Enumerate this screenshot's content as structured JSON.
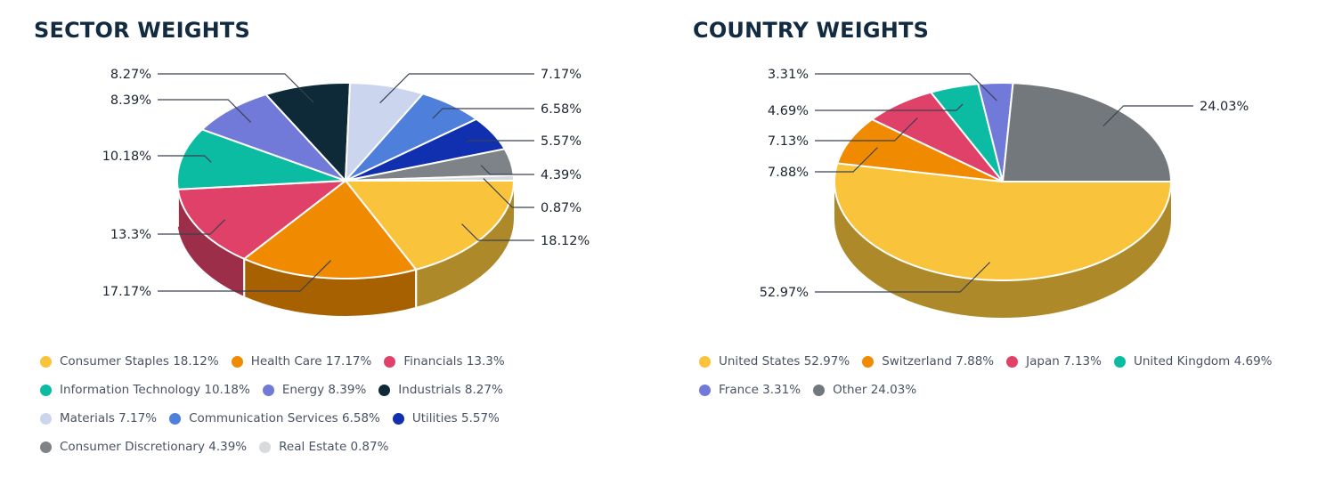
{
  "page_title": "Sector and country weights pie charts",
  "titles": {
    "sector": "SECTOR WEIGHTS",
    "country": "COUNTRY WEIGHTS"
  },
  "colors": {
    "background": "#ffffff",
    "title_text": "#122b40",
    "legend_text": "#4a5263",
    "callout_text": "#1b2431",
    "callout_line": "#3a4150",
    "slice_border": "#ffffff"
  },
  "chart_data": [
    {
      "type": "pie",
      "style": "3d",
      "title": "SECTOR WEIGHTS",
      "start_angle_deg": 0,
      "direction": "clockwise",
      "legend_position": "bottom",
      "slices": [
        {
          "name": "Consumer Staples",
          "value": 18.12,
          "pct": "18.12%",
          "color": "#F9C33C"
        },
        {
          "name": "Health Care",
          "value": 17.17,
          "pct": "17.17%",
          "color": "#EF8A01"
        },
        {
          "name": "Financials",
          "value": 13.3,
          "pct": "13.3%",
          "color": "#E04168"
        },
        {
          "name": "Information Technology",
          "value": 10.18,
          "pct": "10.18%",
          "color": "#0BBCA3"
        },
        {
          "name": "Energy",
          "value": 8.39,
          "pct": "8.39%",
          "color": "#7179D9"
        },
        {
          "name": "Industrials",
          "value": 8.27,
          "pct": "8.27%",
          "color": "#0E2A38"
        },
        {
          "name": "Materials",
          "value": 7.17,
          "pct": "7.17%",
          "color": "#CBD5EE"
        },
        {
          "name": "Communication Services",
          "value": 6.58,
          "pct": "6.58%",
          "color": "#4E7FDA"
        },
        {
          "name": "Utilities",
          "value": 5.57,
          "pct": "5.57%",
          "color": "#1130B0"
        },
        {
          "name": "Consumer Discretionary",
          "value": 4.39,
          "pct": "4.39%",
          "color": "#7E8388"
        },
        {
          "name": "Real Estate",
          "value": 0.87,
          "pct": "0.87%",
          "color": "#D8DADC"
        }
      ]
    },
    {
      "type": "pie",
      "style": "3d",
      "title": "COUNTRY WEIGHTS",
      "start_angle_deg": 0,
      "direction": "clockwise",
      "legend_position": "bottom",
      "slices": [
        {
          "name": "United States",
          "value": 52.97,
          "pct": "52.97%",
          "color": "#F9C33C"
        },
        {
          "name": "Switzerland",
          "value": 7.88,
          "pct": "7.88%",
          "color": "#EF8A01"
        },
        {
          "name": "Japan",
          "value": 7.13,
          "pct": "7.13%",
          "color": "#E04168"
        },
        {
          "name": "United Kingdom",
          "value": 4.69,
          "pct": "4.69%",
          "color": "#0BBCA3"
        },
        {
          "name": "France",
          "value": 3.31,
          "pct": "3.31%",
          "color": "#7179D9"
        },
        {
          "name": "Other",
          "value": 24.03,
          "pct": "24.03%",
          "color": "#73787D"
        }
      ]
    }
  ]
}
